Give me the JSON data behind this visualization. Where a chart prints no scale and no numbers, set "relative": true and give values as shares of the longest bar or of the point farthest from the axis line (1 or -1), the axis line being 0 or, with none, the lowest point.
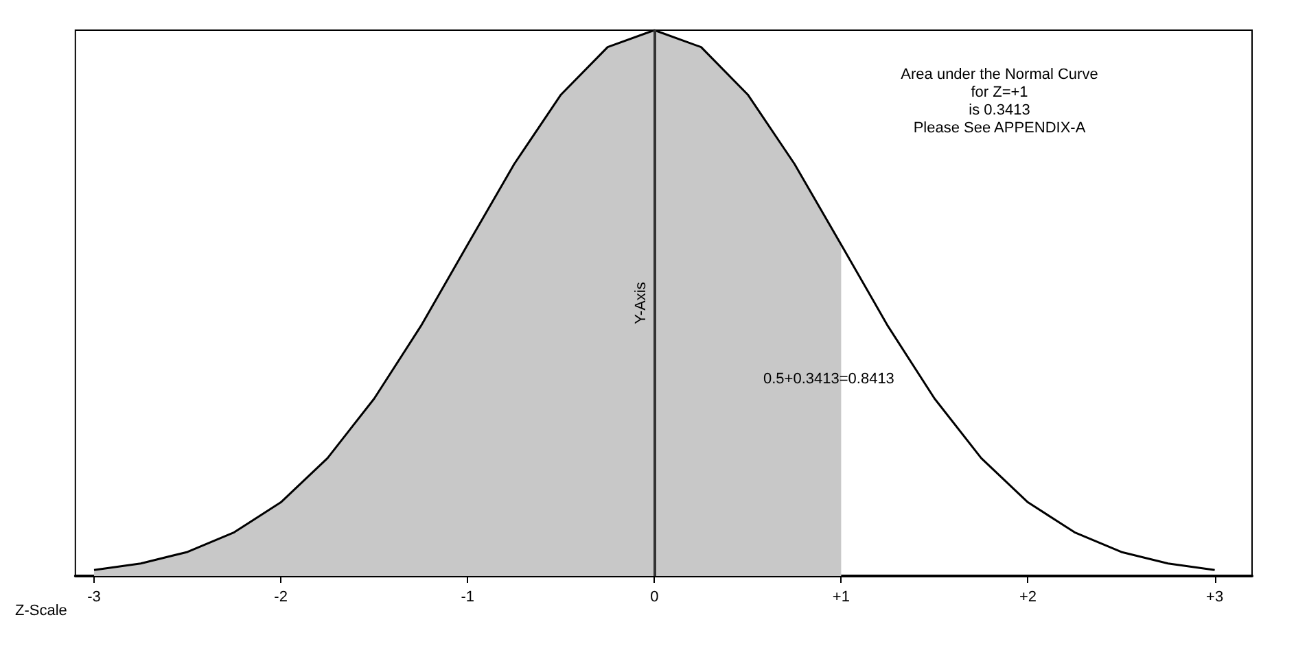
{
  "chart_data": {
    "type": "line",
    "relative": true,
    "xlabel": "Z-Scale",
    "xlim": [
      -3.1,
      3.2
    ],
    "xticks": [
      {
        "value": -3,
        "label": "-3"
      },
      {
        "value": -2,
        "label": "-2"
      },
      {
        "value": -1,
        "label": "-1"
      },
      {
        "value": 0,
        "label": "0"
      },
      {
        "value": 1,
        "label": "+1"
      },
      {
        "value": 2,
        "label": "+2"
      },
      {
        "value": 3,
        "label": "+3"
      }
    ],
    "series": [
      {
        "type": "area",
        "color": "#c8c8c8",
        "x": [
          -3,
          -2.75,
          -2.5,
          -2.25,
          -2,
          -1.75,
          -1.5,
          -1.25,
          -1,
          -0.75,
          -0.5,
          -0.25,
          0,
          0.25,
          0.5,
          0.75,
          1
        ],
        "values": [
          0.011,
          0.023,
          0.044,
          0.08,
          0.135,
          0.216,
          0.325,
          0.458,
          0.607,
          0.755,
          0.882,
          0.969,
          1,
          0.969,
          0.882,
          0.755,
          0.607
        ]
      },
      {
        "type": "line",
        "color": "#000000",
        "x": [
          -3,
          -2.75,
          -2.5,
          -2.25,
          -2,
          -1.75,
          -1.5,
          -1.25,
          -1,
          -0.75,
          -0.5,
          -0.25,
          0,
          0.25,
          0.5,
          0.75,
          1,
          1.25,
          1.5,
          1.75,
          2,
          2.25,
          2.5,
          2.75,
          3
        ],
        "values": [
          0.011,
          0.023,
          0.044,
          0.08,
          0.135,
          0.216,
          0.325,
          0.458,
          0.607,
          0.755,
          0.882,
          0.969,
          1,
          0.969,
          0.882,
          0.755,
          0.607,
          0.458,
          0.325,
          0.216,
          0.135,
          0.08,
          0.044,
          0.023,
          0.011
        ]
      }
    ],
    "ref_lines": [
      {
        "axis": "x",
        "value": 0,
        "label": "Y-Axis",
        "color": "#333333"
      }
    ],
    "annotations": [
      "Area under the Normal Curve\nfor Z=+1\nis 0.3413\nPlease See APPENDIX-A",
      "0.5+0.3413=0.8413"
    ],
    "grid": false,
    "marker": "none",
    "line_style": "solid"
  }
}
